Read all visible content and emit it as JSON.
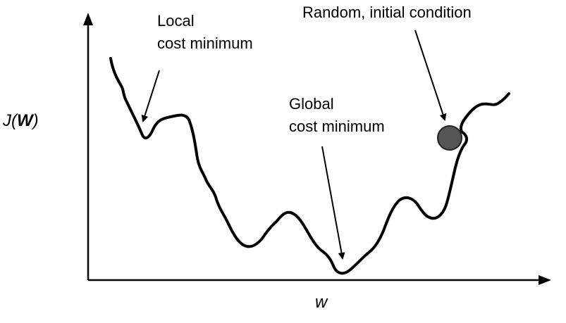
{
  "diagram": {
    "y_axis_label_prefix": "J(",
    "y_axis_label_var": "W",
    "y_axis_label_suffix": ")",
    "x_axis_label": "w",
    "annotations": {
      "local_min_line1": "Local",
      "local_min_line2": "cost minimum",
      "global_min_line1": "Global",
      "global_min_line2": "cost minimum",
      "initial": "Random, initial condition"
    },
    "colors": {
      "curve": "#000000",
      "ball_fill": "#555555",
      "ball_stroke": "#222222"
    }
  }
}
